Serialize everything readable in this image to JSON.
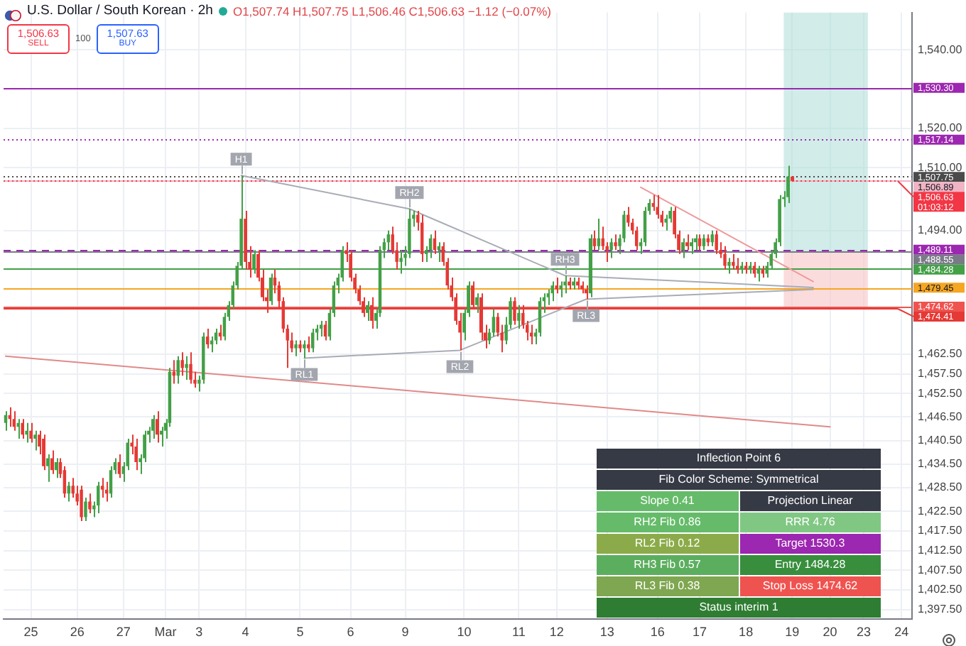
{
  "chart_data": {
    "type": "candlestick",
    "title": "U.S. Dollar / South Korean · 2h",
    "subtitle": "O1,507.74 H1,507.75 L1,506.46 C1,506.63 −1.12 (−0.07%)",
    "categories": [
      null,
      null,
      null,
      null,
      null,
      null,
      "25",
      null,
      null,
      null,
      null,
      null,
      null,
      null,
      null,
      null,
      null,
      "26",
      null,
      null,
      null,
      null,
      null,
      null,
      null,
      null,
      null,
      null,
      "27",
      null,
      null,
      null,
      null,
      null,
      null,
      null,
      null,
      null,
      "Mar",
      null,
      null,
      null,
      null,
      null,
      null,
      null,
      "3",
      null,
      null,
      null,
      null,
      null,
      null,
      null,
      null,
      null,
      null,
      "4",
      null,
      null,
      null,
      null,
      null,
      null,
      null,
      null,
      null,
      null,
      null,
      null,
      "5",
      null,
      null,
      null,
      null,
      null,
      null,
      null,
      null,
      null,
      null,
      null,
      "6",
      null,
      null,
      null,
      null,
      null,
      null,
      null,
      null,
      null,
      null,
      null,
      null,
      "9",
      null,
      null,
      null,
      null,
      null,
      null,
      null,
      null,
      null,
      null,
      null,
      null,
      null,
      "10",
      null,
      null,
      null,
      null,
      null,
      null,
      null,
      null,
      null,
      null,
      null,
      null,
      "11",
      null,
      null,
      null,
      null,
      null,
      null,
      null,
      null,
      "12",
      null,
      null,
      null,
      null,
      null,
      null,
      null,
      null,
      null,
      null,
      null,
      "13",
      null,
      null,
      null,
      null,
      null,
      null,
      null,
      null,
      null,
      null,
      null,
      "16",
      null,
      null,
      null,
      null,
      null,
      null,
      null,
      null,
      null,
      "17",
      null,
      null,
      null,
      null,
      null,
      null,
      null,
      null,
      null,
      null,
      "18",
      null,
      null,
      null,
      null,
      null,
      null,
      null,
      null,
      null,
      null,
      "19",
      null,
      null,
      null,
      null,
      null,
      null,
      null,
      null,
      "20",
      null,
      null,
      null,
      null,
      null,
      null,
      null,
      "23",
      null,
      null,
      null,
      null,
      null,
      null,
      null,
      null,
      "24",
      null,
      null
    ],
    "ohlc": [
      [
        1445,
        1448,
        1443,
        1447
      ],
      [
        1447,
        1449,
        1444,
        1446
      ],
      [
        1446,
        1448,
        1443,
        1444
      ],
      [
        1444,
        1446,
        1441,
        1445
      ],
      [
        1445,
        1446,
        1441,
        1442
      ],
      [
        1442,
        1445,
        1440,
        1443
      ],
      [
        1443,
        1445,
        1440,
        1441
      ],
      [
        1441,
        1443,
        1438,
        1442
      ],
      [
        1442,
        1443,
        1437,
        1439
      ],
      [
        1441,
        1442,
        1433,
        1434
      ],
      [
        1434,
        1437,
        1430,
        1436
      ],
      [
        1436,
        1438,
        1432,
        1433
      ],
      [
        1433,
        1436,
        1431,
        1435
      ],
      [
        1435,
        1436,
        1431,
        1432
      ],
      [
        1433,
        1434,
        1426,
        1427
      ],
      [
        1427,
        1430,
        1425,
        1429
      ],
      [
        1429,
        1431,
        1426,
        1427
      ],
      [
        1427,
        1429,
        1424,
        1425
      ],
      [
        1428,
        1429,
        1420,
        1421
      ],
      [
        1421,
        1426,
        1420,
        1425
      ],
      [
        1425,
        1427,
        1422,
        1423
      ],
      [
        1423,
        1425,
        1421,
        1424
      ],
      [
        1424,
        1430,
        1422,
        1429
      ],
      [
        1429,
        1431,
        1426,
        1428
      ],
      [
        1428,
        1430,
        1425,
        1427
      ],
      [
        1427,
        1434,
        1426,
        1433
      ],
      [
        1433,
        1436,
        1432,
        1435
      ],
      [
        1435,
        1437,
        1431,
        1432
      ],
      [
        1432,
        1435,
        1430,
        1434
      ],
      [
        1434,
        1441,
        1433,
        1440
      ],
      [
        1440,
        1442,
        1437,
        1439
      ],
      [
        1439,
        1441,
        1433,
        1435
      ],
      [
        1435,
        1437,
        1432,
        1436
      ],
      [
        1436,
        1443,
        1435,
        1442
      ],
      [
        1442,
        1444,
        1440,
        1443
      ],
      [
        1443,
        1447,
        1441,
        1446
      ],
      [
        1446,
        1448,
        1440,
        1442
      ],
      [
        1442,
        1444,
        1439,
        1443
      ],
      [
        1443,
        1446,
        1441,
        1445
      ],
      [
        1445,
        1459,
        1444,
        1458
      ],
      [
        1458,
        1461,
        1455,
        1457
      ],
      [
        1457,
        1462,
        1455,
        1461
      ],
      [
        1461,
        1463,
        1457,
        1459
      ],
      [
        1459,
        1462,
        1456,
        1460
      ],
      [
        1460,
        1463,
        1455,
        1456
      ],
      [
        1456,
        1458,
        1454,
        1455
      ],
      [
        1455,
        1457,
        1453,
        1456
      ],
      [
        1456,
        1468,
        1455,
        1467
      ],
      [
        1467,
        1469,
        1464,
        1465
      ],
      [
        1465,
        1467,
        1463,
        1466
      ],
      [
        1466,
        1469,
        1465,
        1468
      ],
      [
        1468,
        1470,
        1466,
        1467
      ],
      [
        1467,
        1473,
        1466,
        1472
      ],
      [
        1472,
        1476,
        1471,
        1475
      ],
      [
        1475,
        1481,
        1474,
        1480
      ],
      [
        1480,
        1486,
        1479,
        1485
      ],
      [
        1485,
        1508,
        1484,
        1497
      ],
      [
        1497,
        1499,
        1484,
        1486
      ],
      [
        1486,
        1490,
        1482,
        1484
      ],
      [
        1484,
        1489,
        1483,
        1488
      ],
      [
        1488,
        1489,
        1481,
        1482
      ],
      [
        1482,
        1484,
        1476,
        1477
      ],
      [
        1477,
        1479,
        1473,
        1476
      ],
      [
        1476,
        1483,
        1475,
        1482
      ],
      [
        1482,
        1484,
        1478,
        1480
      ],
      [
        1480,
        1481,
        1474,
        1476
      ],
      [
        1476,
        1477,
        1468,
        1469
      ],
      [
        1469,
        1470,
        1459,
        1466
      ],
      [
        1466,
        1468,
        1463,
        1464
      ],
      [
        1464,
        1466,
        1462,
        1465
      ],
      [
        1465,
        1466,
        1463,
        1464
      ],
      [
        1464,
        1466,
        1461.5,
        1465
      ],
      [
        1465,
        1467,
        1463,
        1464
      ],
      [
        1464,
        1469,
        1463,
        1468
      ],
      [
        1468,
        1470,
        1466,
        1469
      ],
      [
        1469,
        1471,
        1467,
        1470
      ],
      [
        1470,
        1471,
        1466,
        1467
      ],
      [
        1467,
        1474,
        1466,
        1473
      ],
      [
        1473,
        1481,
        1472,
        1480
      ],
      [
        1480,
        1483,
        1478,
        1482
      ],
      [
        1482,
        1490,
        1481,
        1489
      ],
      [
        1489,
        1491,
        1486,
        1488
      ],
      [
        1488,
        1489,
        1481,
        1482
      ],
      [
        1482,
        1483,
        1478,
        1479
      ],
      [
        1479,
        1480,
        1475,
        1476
      ],
      [
        1476,
        1477,
        1472,
        1473
      ],
      [
        1473,
        1476,
        1471,
        1475
      ],
      [
        1475,
        1477,
        1469,
        1471
      ],
      [
        1471,
        1474,
        1469,
        1473
      ],
      [
        1473,
        1490,
        1472,
        1489
      ],
      [
        1489,
        1492,
        1487,
        1491
      ],
      [
        1491,
        1494,
        1489,
        1493
      ],
      [
        1493,
        1495,
        1488,
        1489
      ],
      [
        1489,
        1491,
        1484,
        1486
      ],
      [
        1486,
        1489,
        1483,
        1487
      ],
      [
        1487,
        1490,
        1485,
        1488
      ],
      [
        1488,
        1499.5,
        1487,
        1497
      ],
      [
        1497,
        1499,
        1495,
        1498
      ],
      [
        1498,
        1499,
        1494,
        1496
      ],
      [
        1496,
        1498,
        1486,
        1488
      ],
      [
        1488,
        1490,
        1486,
        1489
      ],
      [
        1489,
        1493,
        1487,
        1492
      ],
      [
        1492,
        1494,
        1488,
        1489
      ],
      [
        1489,
        1491,
        1486,
        1490
      ],
      [
        1490,
        1491,
        1485,
        1486
      ],
      [
        1486,
        1487,
        1479,
        1480
      ],
      [
        1480,
        1482,
        1476,
        1477
      ],
      [
        1477,
        1478,
        1470,
        1471
      ],
      [
        1471,
        1473,
        1463.5,
        1468
      ],
      [
        1468,
        1474,
        1466,
        1473
      ],
      [
        1473,
        1481,
        1472,
        1480
      ],
      [
        1480,
        1481,
        1474,
        1475
      ],
      [
        1475,
        1478,
        1473,
        1477
      ],
      [
        1477,
        1478,
        1466,
        1468
      ],
      [
        1468,
        1470,
        1464,
        1466
      ],
      [
        1466,
        1469,
        1465,
        1468
      ],
      [
        1468,
        1474,
        1467,
        1472
      ],
      [
        1472,
        1473,
        1467,
        1468
      ],
      [
        1468,
        1470,
        1463,
        1466
      ],
      [
        1466,
        1472,
        1465,
        1470
      ],
      [
        1470,
        1477,
        1469,
        1476
      ],
      [
        1476,
        1477,
        1470,
        1471
      ],
      [
        1471,
        1475,
        1469,
        1473
      ],
      [
        1473,
        1475,
        1469,
        1470
      ],
      [
        1470,
        1471,
        1466,
        1468
      ],
      [
        1468,
        1470,
        1465,
        1467
      ],
      [
        1467,
        1469,
        1465,
        1468
      ],
      [
        1468,
        1477,
        1467,
        1476
      ],
      [
        1476,
        1478,
        1473,
        1477
      ],
      [
        1477,
        1479,
        1475,
        1478
      ],
      [
        1478,
        1481,
        1476,
        1480
      ],
      [
        1480,
        1482,
        1478,
        1479
      ],
      [
        1479,
        1481,
        1477,
        1480
      ],
      [
        1480,
        1482.5,
        1478,
        1481
      ],
      [
        1481,
        1482,
        1479,
        1480
      ],
      [
        1480,
        1482,
        1479,
        1481
      ],
      [
        1481,
        1482,
        1479,
        1480
      ],
      [
        1480,
        1481,
        1478,
        1479
      ],
      [
        1479,
        1480,
        1476.5,
        1478
      ],
      [
        1478,
        1493,
        1477,
        1492
      ],
      [
        1492,
        1494,
        1489,
        1490
      ],
      [
        1490,
        1497,
        1489,
        1492
      ],
      [
        1492,
        1495,
        1489,
        1490
      ],
      [
        1490,
        1491,
        1486,
        1489
      ],
      [
        1489,
        1492,
        1487,
        1491
      ],
      [
        1491,
        1493,
        1489,
        1490
      ],
      [
        1490,
        1493,
        1488,
        1492
      ],
      [
        1492,
        1499,
        1491,
        1498
      ],
      [
        1498,
        1500,
        1495,
        1496
      ],
      [
        1496,
        1497,
        1493,
        1494
      ],
      [
        1494,
        1495,
        1489,
        1490
      ],
      [
        1490,
        1492,
        1488,
        1491
      ],
      [
        1491,
        1500,
        1490,
        1499
      ],
      [
        1499,
        1502,
        1498,
        1501
      ],
      [
        1501,
        1503,
        1499,
        1500
      ],
      [
        1500,
        1503,
        1497,
        1498
      ],
      [
        1498,
        1499,
        1495,
        1496
      ],
      [
        1496,
        1498,
        1494,
        1497
      ],
      [
        1497,
        1500,
        1496,
        1499
      ],
      [
        1499,
        1500,
        1492,
        1493
      ],
      [
        1493,
        1494,
        1488,
        1489
      ],
      [
        1489,
        1492,
        1487,
        1491
      ],
      [
        1491,
        1493,
        1489,
        1490
      ],
      [
        1490,
        1492,
        1488,
        1491
      ],
      [
        1491,
        1493,
        1489,
        1492
      ],
      [
        1492,
        1493,
        1489,
        1490
      ],
      [
        1490,
        1493,
        1489,
        1492
      ],
      [
        1492,
        1493,
        1490,
        1491
      ],
      [
        1491,
        1494,
        1490,
        1493
      ],
      [
        1493,
        1494,
        1488,
        1489
      ],
      [
        1489,
        1491,
        1487,
        1488
      ],
      [
        1488,
        1490,
        1484,
        1485
      ],
      [
        1485,
        1487,
        1483,
        1486
      ],
      [
        1486,
        1488,
        1484,
        1485
      ],
      [
        1485,
        1487,
        1483,
        1484
      ],
      [
        1484,
        1486,
        1483,
        1485
      ],
      [
        1485,
        1486,
        1483,
        1484
      ],
      [
        1484,
        1486,
        1483,
        1485
      ],
      [
        1485,
        1486,
        1482,
        1483
      ],
      [
        1483,
        1485,
        1481,
        1484
      ],
      [
        1484,
        1485,
        1482,
        1483
      ],
      [
        1483,
        1486,
        1482,
        1485
      ],
      [
        1485,
        1489,
        1484,
        1488
      ],
      [
        1488,
        1492,
        1487,
        1491
      ],
      [
        1491,
        1503,
        1490,
        1502
      ],
      [
        1502,
        1504,
        1500,
        1502.5
      ],
      [
        1502.5,
        1510.5,
        1501,
        1507.7
      ],
      [
        1507.74,
        1507.75,
        1506.46,
        1506.63
      ],
      null,
      null,
      null,
      null,
      null,
      null,
      null,
      null,
      null,
      null,
      null,
      null,
      null,
      null,
      null,
      null,
      null,
      null,
      null,
      null,
      null,
      null,
      null,
      null,
      null,
      null,
      null,
      null
    ],
    "colors": [
      "#43a047",
      "#e53935",
      "#e53935",
      "#43a047",
      "#e53935",
      "#43a047",
      "#e53935",
      "#43a047",
      "#e53935",
      "#e53935",
      "#43a047",
      "#e53935",
      "#43a047",
      "#e53935",
      "#e53935",
      "#43a047",
      "#e53935",
      "#e53935",
      "#e53935",
      "#43a047",
      "#e53935",
      "#43a047",
      "#43a047",
      "#e53935",
      "#e53935",
      "#43a047",
      "#43a047",
      "#e53935",
      "#43a047",
      "#43a047",
      "#e53935",
      "#e53935",
      "#43a047",
      "#43a047",
      "#43a047",
      "#43a047",
      "#e53935",
      "#43a047",
      "#43a047",
      "#43a047",
      "#e53935",
      "#43a047",
      "#e53935",
      "#43a047",
      "#e53935",
      "#e53935",
      "#43a047",
      "#43a047",
      "#e53935",
      "#43a047",
      "#43a047",
      "#e53935",
      "#43a047",
      "#43a047",
      "#43a047",
      "#43a047",
      "#43a047",
      "#e53935",
      "#e53935",
      "#43a047",
      "#e53935",
      "#e53935",
      "#e53935",
      "#43a047",
      "#e53935",
      "#e53935",
      "#e53935",
      "#e53935",
      "#e53935",
      "#43a047",
      "#e53935",
      "#43a047",
      "#e53935",
      "#43a047",
      "#43a047",
      "#43a047",
      "#e53935",
      "#43a047",
      "#43a047",
      "#43a047",
      "#43a047",
      "#e53935",
      "#e53935",
      "#e53935",
      "#e53935",
      "#e53935",
      "#43a047",
      "#e53935",
      "#43a047",
      "#43a047",
      "#43a047",
      "#43a047",
      "#e53935",
      "#e53935",
      "#43a047",
      "#43a047",
      "#43a047",
      "#43a047",
      "#e53935",
      "#e53935",
      "#43a047",
      "#43a047",
      "#e53935",
      "#43a047",
      "#e53935",
      "#e53935",
      "#e53935",
      "#e53935",
      "#e53935",
      "#43a047",
      "#43a047",
      "#e53935",
      "#43a047",
      "#e53935",
      "#e53935",
      "#43a047",
      "#43a047",
      "#e53935",
      "#e53935",
      "#43a047",
      "#43a047",
      "#e53935",
      "#43a047",
      "#e53935",
      "#e53935",
      "#e53935",
      "#43a047",
      "#43a047",
      "#43a047",
      "#43a047",
      "#43a047",
      "#e53935",
      "#43a047",
      "#43a047",
      "#e53935",
      "#43a047",
      "#e53935",
      "#e53935",
      "#e53935",
      "#43a047",
      "#e53935",
      "#43a047",
      "#e53935",
      "#e53935",
      "#43a047",
      "#e53935",
      "#43a047",
      "#43a047",
      "#e53935",
      "#e53935",
      "#e53935",
      "#43a047",
      "#43a047",
      "#43a047",
      "#e53935",
      "#e53935",
      "#e53935",
      "#43a047",
      "#43a047",
      "#e53935",
      "#e53935",
      "#43a047",
      "#e53935",
      "#43a047",
      "#43a047",
      "#e53935",
      "#43a047",
      "#e53935",
      "#43a047",
      "#e53935",
      "#e53935",
      "#e53935",
      "#43a047",
      "#e53935",
      "#e53935",
      "#43a047",
      "#e53935",
      "#43a047",
      "#e53935",
      "#43a047",
      "#e53935",
      "#43a047",
      "#43a047",
      "#43a047",
      "#43a047",
      "#43a047",
      "#43a047",
      "#e53935",
      null,
      null,
      null,
      null,
      null,
      null,
      null,
      null,
      null,
      null,
      null,
      null,
      null,
      null,
      null,
      null,
      null,
      null,
      null,
      null,
      null,
      null,
      null,
      null,
      null,
      null,
      null,
      null
    ],
    "series": [
      {
        "type": "line",
        "color": "#a9acb6",
        "values": [
          null,
          null,
          null,
          null,
          null,
          null,
          null,
          null,
          null,
          null,
          null,
          null,
          null,
          null,
          null,
          null,
          null,
          null,
          null,
          null,
          null,
          null,
          null,
          null,
          null,
          null,
          null,
          null,
          null,
          null,
          null,
          null,
          null,
          null,
          null,
          null,
          null,
          null,
          null,
          null,
          null,
          null,
          null,
          null,
          null,
          null,
          null,
          null,
          null,
          null,
          null,
          null,
          null,
          null,
          null,
          null,
          1508,
          null,
          null,
          null,
          null,
          null,
          null,
          null,
          null,
          null,
          null,
          null,
          null,
          null,
          null,
          null,
          null,
          null,
          null,
          null,
          null,
          null,
          null,
          null,
          null,
          null,
          null,
          null,
          null,
          null,
          null,
          null,
          null,
          null,
          null,
          null,
          null,
          null,
          null,
          null,
          1499.5,
          null,
          null,
          null,
          null,
          null,
          null,
          null,
          null,
          null,
          null,
          null,
          null,
          null,
          null,
          null,
          null,
          null,
          null,
          null,
          null,
          null,
          null,
          null,
          null,
          null,
          null,
          null,
          null,
          null,
          null,
          null,
          null,
          null,
          null,
          null,
          null,
          1482.5,
          null,
          null,
          null,
          null,
          null,
          null,
          null,
          null,
          null,
          null,
          null,
          null,
          null,
          null,
          null,
          null,
          null,
          null,
          null,
          null,
          null,
          null,
          null,
          null,
          null,
          null,
          null,
          null,
          null,
          null,
          null,
          null,
          null,
          null,
          null,
          null,
          null,
          null,
          null,
          null,
          null,
          null,
          null,
          null,
          null,
          null,
          null,
          null,
          null,
          null,
          null,
          null,
          null,
          null,
          null,
          null,
          null,
          null,
          1479.5,
          null,
          null,
          null,
          null,
          null,
          null,
          null,
          null,
          null,
          null,
          null,
          null,
          null,
          null,
          null,
          null,
          null,
          null,
          null,
          null,
          null,
          null,
          null
        ]
      },
      {
        "type": "line",
        "color": "#a9acb6",
        "values": [
          null,
          null,
          null,
          null,
          null,
          null,
          null,
          null,
          null,
          null,
          null,
          null,
          null,
          null,
          null,
          null,
          null,
          null,
          null,
          null,
          null,
          null,
          null,
          null,
          null,
          null,
          null,
          null,
          null,
          null,
          null,
          null,
          null,
          null,
          null,
          null,
          null,
          null,
          null,
          null,
          null,
          null,
          null,
          null,
          null,
          null,
          null,
          null,
          null,
          null,
          null,
          null,
          null,
          null,
          null,
          null,
          null,
          null,
          null,
          null,
          null,
          null,
          null,
          null,
          null,
          null,
          null,
          null,
          null,
          null,
          null,
          1461.5,
          null,
          null,
          null,
          null,
          null,
          null,
          null,
          null,
          null,
          null,
          null,
          null,
          null,
          null,
          null,
          null,
          null,
          null,
          null,
          null,
          null,
          null,
          null,
          null,
          null,
          null,
          null,
          null,
          null,
          null,
          null,
          null,
          null,
          null,
          null,
          null,
          1463.5,
          null,
          null,
          null,
          null,
          null,
          null,
          null,
          null,
          null,
          null,
          null,
          null,
          null,
          null,
          null,
          null,
          null,
          null,
          null,
          null,
          null,
          null,
          null,
          null,
          null,
          null,
          null,
          null,
          null,
          1476.5,
          null,
          null,
          null,
          null,
          null,
          null,
          null,
          null,
          null,
          null,
          null,
          null,
          null,
          null,
          null,
          null,
          null,
          null,
          null,
          null,
          null,
          null,
          null,
          null,
          null,
          null,
          null,
          null,
          null,
          null,
          null,
          null,
          null,
          null,
          null,
          null,
          null,
          null,
          null,
          null,
          null,
          null,
          null,
          null,
          null,
          null,
          null,
          null,
          null,
          null,
          null,
          null,
          null,
          1479,
          null,
          null,
          null,
          null,
          null,
          null,
          null,
          null,
          null,
          null,
          null,
          null,
          null,
          null,
          null,
          null,
          null,
          null,
          null,
          null,
          null,
          null,
          null
        ]
      },
      {
        "type": "line",
        "color": "#ef9a9a",
        "values": [
          null,
          null,
          null,
          null,
          null,
          null,
          null,
          null,
          null,
          null,
          null,
          null,
          null,
          null,
          null,
          null,
          null,
          null,
          null,
          null,
          null,
          null,
          null,
          null,
          null,
          null,
          null,
          null,
          null,
          null,
          null,
          null,
          null,
          null,
          null,
          null,
          null,
          null,
          null,
          null,
          null,
          null,
          null,
          null,
          null,
          null,
          null,
          null,
          null,
          null,
          null,
          null,
          null,
          null,
          null,
          null,
          null,
          null,
          null,
          null,
          null,
          null,
          null,
          null,
          null,
          null,
          null,
          null,
          null,
          null,
          null,
          null,
          null,
          null,
          null,
          null,
          null,
          null,
          null,
          null,
          null,
          null,
          null,
          null,
          null,
          null,
          null,
          null,
          null,
          null,
          null,
          null,
          null,
          null,
          null,
          null,
          null,
          null,
          null,
          null,
          null,
          null,
          null,
          null,
          null,
          null,
          null,
          null,
          null,
          null,
          null,
          null,
          null,
          null,
          null,
          null,
          null,
          null,
          null,
          null,
          null,
          null,
          null,
          null,
          null,
          null,
          null,
          null,
          null,
          null,
          null,
          null,
          null,
          null,
          null,
          null,
          null,
          null,
          null,
          null,
          null,
          null,
          null,
          null,
          null,
          null,
          null,
          null,
          null,
          null,
          null,
          1505,
          null,
          null,
          null,
          null,
          null,
          null,
          null,
          null,
          null,
          null,
          null,
          null,
          null,
          null,
          null,
          null,
          null,
          null,
          null,
          null,
          null,
          null,
          null,
          null,
          null,
          null,
          null,
          null,
          null,
          null,
          null,
          null,
          null,
          null,
          null,
          null,
          null,
          null,
          null,
          null,
          1481,
          null,
          null,
          null,
          null,
          null,
          null,
          null,
          null,
          null,
          null,
          null,
          null,
          null,
          null,
          null,
          null,
          null,
          null,
          null,
          null,
          null,
          null,
          null
        ]
      },
      {
        "type": "line",
        "color": "#e08a8a",
        "values": [
          1462,
          null,
          null,
          null,
          null,
          null,
          null,
          null,
          null,
          null,
          null,
          null,
          null,
          null,
          null,
          null,
          null,
          null,
          null,
          null,
          null,
          null,
          null,
          null,
          null,
          null,
          null,
          null,
          null,
          null,
          null,
          null,
          null,
          null,
          null,
          null,
          null,
          null,
          null,
          null,
          null,
          null,
          null,
          null,
          null,
          null,
          null,
          null,
          null,
          null,
          null,
          null,
          null,
          null,
          null,
          null,
          null,
          null,
          null,
          null,
          null,
          null,
          null,
          null,
          null,
          null,
          null,
          null,
          null,
          null,
          null,
          null,
          null,
          null,
          null,
          null,
          null,
          null,
          null,
          null,
          null,
          null,
          null,
          null,
          null,
          null,
          null,
          null,
          null,
          null,
          null,
          null,
          null,
          null,
          null,
          null,
          null,
          null,
          null,
          null,
          null,
          null,
          null,
          null,
          null,
          null,
          null,
          null,
          null,
          null,
          null,
          null,
          null,
          null,
          null,
          null,
          null,
          null,
          null,
          null,
          null,
          null,
          null,
          null,
          null,
          null,
          null,
          null,
          null,
          null,
          null,
          null,
          null,
          null,
          null,
          null,
          null,
          null,
          null,
          null,
          null,
          null,
          null,
          null,
          null,
          null,
          null,
          null,
          null,
          null,
          null,
          null,
          null,
          null,
          null,
          null,
          null,
          null,
          null,
          null,
          null,
          null,
          null,
          null,
          null,
          null,
          null,
          null,
          null,
          null,
          null,
          null,
          null,
          null,
          null,
          null,
          null,
          null,
          null,
          null,
          null,
          null,
          null,
          null,
          null,
          null,
          null,
          null,
          null,
          null,
          null,
          null,
          null,
          null,
          null,
          null,
          1444,
          null,
          null,
          null,
          null,
          null,
          null,
          null,
          null,
          null,
          null,
          null,
          null,
          null,
          null,
          null,
          null,
          null,
          null,
          null
        ]
      }
    ],
    "ylim": [
      1395,
      1549.5
    ],
    "yticks": [
      {
        "value": 1397.5,
        "label": "1,397.50"
      },
      {
        "value": 1402.5,
        "label": "1,402.50"
      },
      {
        "value": 1407.5,
        "label": "1,407.50"
      },
      {
        "value": 1412.5,
        "label": "1,412.50"
      },
      {
        "value": 1417.5,
        "label": "1,417.50"
      },
      {
        "value": 1422.5,
        "label": "1,422.50"
      },
      {
        "value": 1428.5,
        "label": "1,428.50"
      },
      {
        "value": 1434.5,
        "label": "1,434.50"
      },
      {
        "value": 1440.5,
        "label": "1,440.50"
      },
      {
        "value": 1446.5,
        "label": "1,446.50"
      },
      {
        "value": 1452.5,
        "label": "1,452.50"
      },
      {
        "value": 1457.5,
        "label": "1,457.50"
      },
      {
        "value": 1462.5,
        "label": "1,462.50"
      },
      {
        "value": 1494,
        "label": "1,494.00"
      },
      {
        "value": 1510,
        "label": "1,510.00"
      },
      {
        "value": 1520,
        "label": "1,520.00"
      },
      {
        "value": 1540,
        "label": "1,540.00"
      }
    ],
    "grid": true,
    "ref_lines": [
      {
        "axis": "y",
        "value": 1530.3,
        "label": "1,530.30",
        "color": "#9c27b0"
      },
      {
        "axis": "y",
        "value": 1517.14,
        "label": "1,517.14",
        "color": "#9c27b0",
        "line_style": "dotted"
      },
      {
        "axis": "y",
        "value": 1507.75,
        "label": "1,507.75",
        "color": "#4a4a4a",
        "line_style": "dotted"
      },
      {
        "axis": "y",
        "value": 1506.89,
        "label": "1,506.89",
        "color": "#f0b4c4"
      },
      {
        "axis": "y",
        "value": 1506.63,
        "label": "1,506.63\n01:03:12",
        "color": "#f23645",
        "line_style": "dotted"
      },
      {
        "axis": "y",
        "value": 1489.11,
        "label": "1,489.11",
        "color": "#9c27b0",
        "line_style": "dashed"
      },
      {
        "axis": "y",
        "value": 1488.55,
        "label": "1,488.55",
        "color": "#787b86"
      },
      {
        "axis": "y",
        "value": 1484.28,
        "label": "1,484.28",
        "color": "#43a047"
      },
      {
        "axis": "y",
        "value": 1479.45,
        "label": "1,479.45",
        "color": "#f5a623"
      },
      {
        "axis": "y",
        "value": 1474.62,
        "label": "1,474.62",
        "color": "#ef5350"
      },
      {
        "axis": "y",
        "value": 1474.41,
        "label": "1,474.41",
        "color": "#e53935"
      }
    ],
    "bands": [
      {
        "axis": "y",
        "from": 1488.55,
        "to": 1549.5,
        "color": "#b2dfdb"
      },
      {
        "axis": "y",
        "from": 1474.41,
        "to": 1488.55,
        "color": "#f8c4c4"
      }
    ],
    "annotations": [
      "1,506.63",
      "SELL",
      "100",
      "1,507.63",
      "BUY",
      {
        "text": "H1",
        "y": 1508
      },
      {
        "text": "RH2",
        "y": 1499.5
      },
      {
        "text": "RL1",
        "y": 1461.5
      },
      {
        "text": "RL2",
        "y": 1463.5
      },
      {
        "text": "RH3",
        "y": 1482.5
      },
      {
        "text": "RL3",
        "y": 1476.5
      },
      "Inflection Point 6",
      "Fib Color Scheme: Symmetrical",
      "Slope 0.41",
      "Projection Linear",
      "RH2 Fib 0.86",
      "RRR 4.76",
      "RL2 Fib 0.12",
      "Target 1530.3",
      "RH3 Fib 0.57",
      "Entry 1484.28",
      "RL3 Fib 0.38",
      "Stop Loss 1474.62",
      "Status interim 1"
    ]
  }
}
